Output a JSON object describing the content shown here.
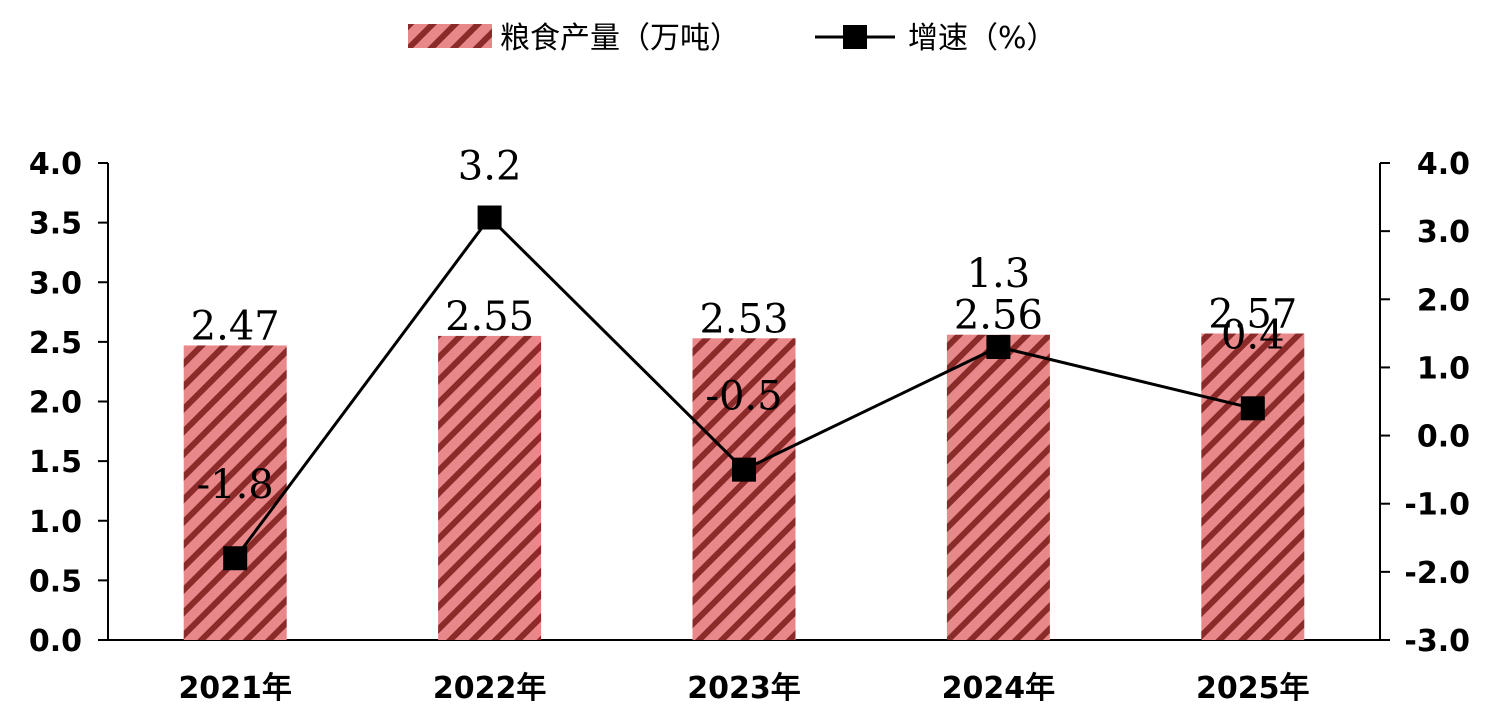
{
  "chart_data": {
    "type": "bar",
    "categories": [
      "2021年",
      "2022年",
      "2023年",
      "2024年",
      "2025年"
    ],
    "series": [
      {
        "name": "粮食产量（万吨）",
        "kind": "bar",
        "axis": "left",
        "values": [
          2.47,
          2.55,
          2.53,
          2.56,
          2.57
        ],
        "labels": [
          "2.47",
          "2.55",
          "2.53",
          "2.56",
          "2.57"
        ],
        "fill_color": "#e8888a",
        "hatch_color": "#8c2a2a"
      },
      {
        "name": "增速（%）",
        "kind": "line",
        "axis": "right",
        "marker": "square",
        "values": [
          -1.8,
          3.2,
          -0.5,
          1.3,
          0.4
        ],
        "labels": [
          "-1.8",
          "3.2",
          "-0.5",
          "1.3",
          "0.4"
        ],
        "color": "#000000"
      }
    ],
    "y_left": {
      "range": [
        0,
        4
      ],
      "ticks": [
        "0.0",
        "0.5",
        "1.0",
        "1.5",
        "2.0",
        "2.5",
        "3.0",
        "3.5",
        "4.0"
      ]
    },
    "y_right": {
      "range": [
        -3,
        4
      ],
      "ticks": [
        "-3.0",
        "-2.0",
        "-1.0",
        "0.0",
        "1.0",
        "2.0",
        "3.0",
        "4.0"
      ]
    },
    "grid": false,
    "legend_position": "top-center",
    "title": "",
    "xlabel": "",
    "ylabel": ""
  }
}
